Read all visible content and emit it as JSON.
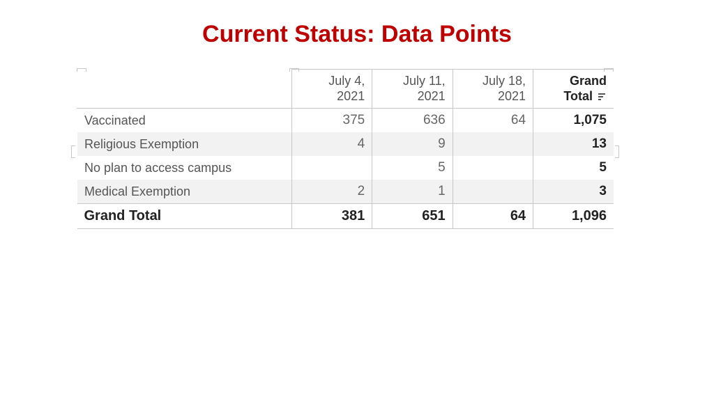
{
  "title": "Current Status: Data Points",
  "title_color": "#c00000",
  "title_fontsize": 34,
  "table": {
    "type": "table",
    "border_color": "#c7c7c7",
    "header_color": "#555555",
    "cell_color": "#666666",
    "total_color": "#222222",
    "alt_row_bg": "#f2f2f2",
    "row_bg": "#ffffff",
    "header_fontsize": 18,
    "cell_fontsize": 19,
    "rowhead_fontsize": 18,
    "total_fontsize": 20,
    "col_widths": [
      "40%",
      "15%",
      "15%",
      "15%",
      "15%"
    ],
    "columns": [
      {
        "line1": "",
        "line2": ""
      },
      {
        "line1": "July 4,",
        "line2": "2021"
      },
      {
        "line1": "July 11,",
        "line2": "2021"
      },
      {
        "line1": "July 18,",
        "line2": "2021"
      },
      {
        "line1": "Grand",
        "line2": "Total"
      }
    ],
    "grand_total_has_sort_icon": true,
    "rows": [
      {
        "label": "Vaccinated",
        "cells": [
          "375",
          "636",
          "64",
          "1,075"
        ],
        "alt": false
      },
      {
        "label": "Religious Exemption",
        "cells": [
          "4",
          "9",
          "",
          "13"
        ],
        "alt": true
      },
      {
        "label": "No plan to access campus",
        "cells": [
          "",
          "5",
          "",
          "5"
        ],
        "alt": false
      },
      {
        "label": "Medical Exemption",
        "cells": [
          "2",
          "1",
          "",
          "3"
        ],
        "alt": true
      }
    ],
    "footer": {
      "label": "Grand Total",
      "cells": [
        "381",
        "651",
        "64",
        "1,096"
      ]
    }
  }
}
